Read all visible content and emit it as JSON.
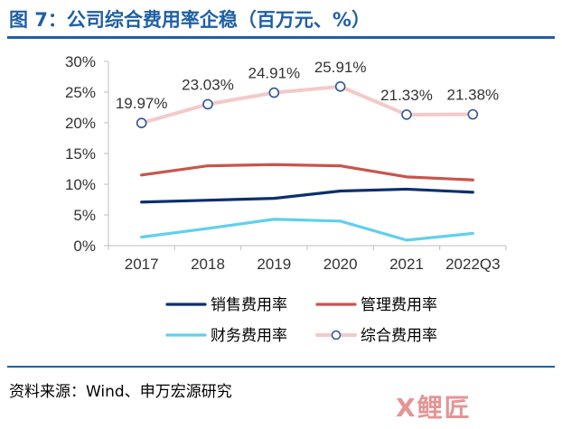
{
  "figure": {
    "title": "图 7：公司综合费用率企稳（百万元、%）",
    "source": "资料来源：Wind、申万宏源研究"
  },
  "chart_data": {
    "type": "line",
    "title": "",
    "xlabel": "",
    "ylabel": "",
    "categories": [
      "2017",
      "2018",
      "2019",
      "2020",
      "2021",
      "2022Q3"
    ],
    "ylim": [
      0,
      30
    ],
    "yticks": [
      0,
      5,
      10,
      15,
      20,
      25,
      30
    ],
    "ytick_labels": [
      "0%",
      "5%",
      "10%",
      "15%",
      "20%",
      "25%",
      "30%"
    ],
    "grid": false,
    "legend_position": "bottom",
    "series": [
      {
        "name": "销售费用率",
        "color": "#0d2f6e",
        "values": [
          7.1,
          7.4,
          7.7,
          8.9,
          9.2,
          8.7
        ],
        "markers": false
      },
      {
        "name": "管理费用率",
        "color": "#c9544d",
        "values": [
          11.5,
          13.0,
          13.2,
          13.0,
          11.2,
          10.7
        ],
        "markers": false
      },
      {
        "name": "财务费用率",
        "color": "#5fd0ee",
        "values": [
          1.4,
          2.8,
          4.3,
          4.0,
          0.9,
          2.0
        ],
        "markers": false
      },
      {
        "name": "综合费用率",
        "color": "#f4c9c9",
        "marker_color": "#2f5597",
        "values": [
          19.97,
          23.03,
          24.91,
          25.91,
          21.33,
          21.38
        ],
        "markers": true,
        "labels": [
          "19.97%",
          "23.03%",
          "24.91%",
          "25.91%",
          "21.33%",
          "21.38%"
        ]
      }
    ]
  },
  "watermark": "X鲤匠"
}
